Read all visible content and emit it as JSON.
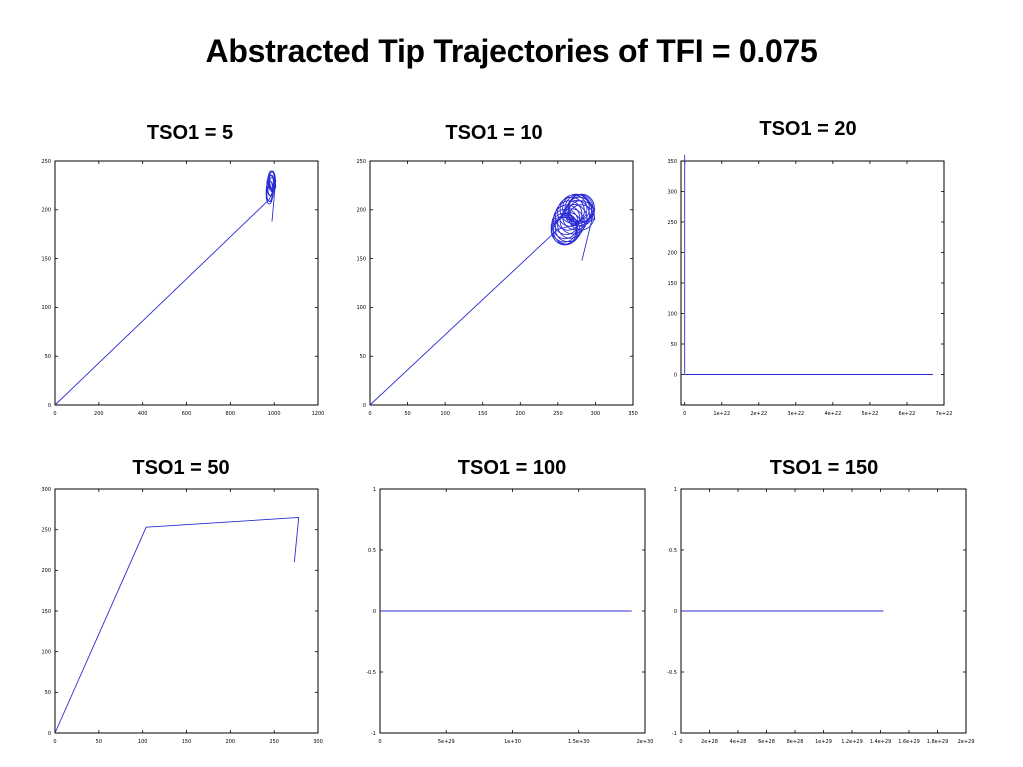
{
  "title": "Abstracted Tip Trajectories of TFI = 0.075",
  "colors": {
    "trace": "#2b2bd6",
    "axis": "#000000",
    "background": "#ffffff"
  },
  "chart_data": [
    {
      "type": "line",
      "title": "TSO1 = 5",
      "xlabel": "",
      "ylabel": "",
      "xlim": [
        0,
        1200
      ],
      "ylim": [
        0,
        250
      ],
      "xticks": [
        0,
        200,
        400,
        600,
        800,
        1000,
        1200
      ],
      "xtick_labels": [
        "0",
        "200",
        "400",
        "600",
        "800",
        "1000",
        "1200"
      ],
      "yticks": [
        0,
        50,
        100,
        150,
        200,
        250
      ],
      "ytick_labels": [
        "0",
        "50",
        "100",
        "150",
        "200",
        "250"
      ],
      "grid": false,
      "series": [
        {
          "x": [
            0,
            975
          ],
          "y": [
            0,
            210
          ],
          "loops": {
            "cx": 985,
            "cy": 223,
            "rx": 14,
            "ry": 9,
            "spread_x": 8,
            "spread_y": 8,
            "count": 10,
            "tail": [
              990,
              188
            ]
          }
        }
      ]
    },
    {
      "type": "line",
      "title": "TSO1 = 10",
      "xlabel": "",
      "ylabel": "",
      "xlim": [
        0,
        350
      ],
      "ylim": [
        0,
        250
      ],
      "xticks": [
        0,
        50,
        100,
        150,
        200,
        250,
        300,
        350
      ],
      "xtick_labels": [
        "0",
        "50",
        "100",
        "150",
        "200",
        "250",
        "300",
        "350"
      ],
      "yticks": [
        0,
        50,
        100,
        150,
        200,
        250
      ],
      "ytick_labels": [
        "0",
        "50",
        "100",
        "150",
        "200",
        "250"
      ],
      "grid": false,
      "series": [
        {
          "x": [
            0,
            250
          ],
          "y": [
            0,
            180
          ],
          "loops": {
            "cx": 270,
            "cy": 190,
            "rx": 17,
            "ry": 14,
            "spread_x": 12,
            "spread_y": 12,
            "count": 22,
            "tail": [
              282,
              148
            ]
          }
        }
      ]
    },
    {
      "type": "line",
      "title": "TSO1 = 20",
      "xlabel": "",
      "ylabel": "",
      "xlim": [
        -1e+21,
        7e+22
      ],
      "ylim": [
        -50,
        350
      ],
      "xticks": [
        0,
        1e+22,
        2e+22,
        3e+22,
        4e+22,
        5e+22,
        6e+22,
        7e+22
      ],
      "xtick_labels": [
        "0",
        "1e+22",
        "2e+22",
        "3e+22",
        "4e+22",
        "5e+22",
        "6e+22",
        "7e+22"
      ],
      "yticks": [
        0,
        50,
        100,
        150,
        200,
        250,
        300,
        350
      ],
      "ytick_labels": [
        "0",
        "50",
        "100",
        "150",
        "200",
        "250",
        "300",
        "350"
      ],
      "grid": false,
      "series": [
        {
          "x": [
            0,
            0,
            6.7e+22
          ],
          "y": [
            360,
            0,
            0
          ]
        }
      ]
    },
    {
      "type": "line",
      "title": "TSO1 = 50",
      "xlabel": "",
      "ylabel": "",
      "xlim": [
        0,
        300
      ],
      "ylim": [
        0,
        300
      ],
      "xticks": [
        0,
        50,
        100,
        150,
        200,
        250,
        300
      ],
      "xtick_labels": [
        "0",
        "50",
        "100",
        "150",
        "200",
        "250",
        "300"
      ],
      "yticks": [
        0,
        50,
        100,
        150,
        200,
        250,
        300
      ],
      "ytick_labels": [
        "0",
        "50",
        "100",
        "150",
        "200",
        "250",
        "300"
      ],
      "grid": false,
      "series": [
        {
          "x": [
            0,
            104,
            278,
            273
          ],
          "y": [
            0,
            253,
            265,
            210
          ]
        }
      ]
    },
    {
      "type": "line",
      "title": "TSO1 = 100",
      "xlabel": "",
      "ylabel": "",
      "xlim": [
        0,
        2e+30
      ],
      "ylim": [
        -1,
        1
      ],
      "xticks": [
        0,
        5e+29,
        1e+30,
        1.5e+30,
        2e+30
      ],
      "xtick_labels": [
        "0",
        "5e+29",
        "1e+30",
        "1.5e+30",
        "2e+30"
      ],
      "yticks": [
        -1,
        -0.5,
        0,
        0.5,
        1
      ],
      "ytick_labels": [
        "-1",
        "-0.5",
        "0",
        "0.5",
        "1"
      ],
      "grid": false,
      "series": [
        {
          "x": [
            0,
            1.9e+30
          ],
          "y": [
            0,
            0
          ]
        }
      ]
    },
    {
      "type": "line",
      "title": "TSO1 = 150",
      "xlabel": "",
      "ylabel": "",
      "xlim": [
        0,
        2e+29
      ],
      "ylim": [
        -1,
        1
      ],
      "xticks": [
        0,
        2e+28,
        4e+28,
        6e+28,
        8e+28,
        1e+29,
        1.2e+29,
        1.4e+29,
        1.6e+29,
        1.8e+29,
        2e+29
      ],
      "xtick_labels": [
        "0",
        "2e+28",
        "4e+28",
        "6e+28",
        "8e+28",
        "1e+29",
        "1.2e+29",
        "1.4e+29",
        "1.6e+29",
        "1.8e+29",
        "2e+29"
      ],
      "yticks": [
        -1,
        -0.5,
        0,
        0.5,
        1
      ],
      "ytick_labels": [
        "-1",
        "-0.5",
        "0",
        "0.5",
        "1"
      ],
      "grid": false,
      "series": [
        {
          "x": [
            0,
            1.42e+29
          ],
          "y": [
            0,
            0
          ]
        }
      ]
    }
  ]
}
